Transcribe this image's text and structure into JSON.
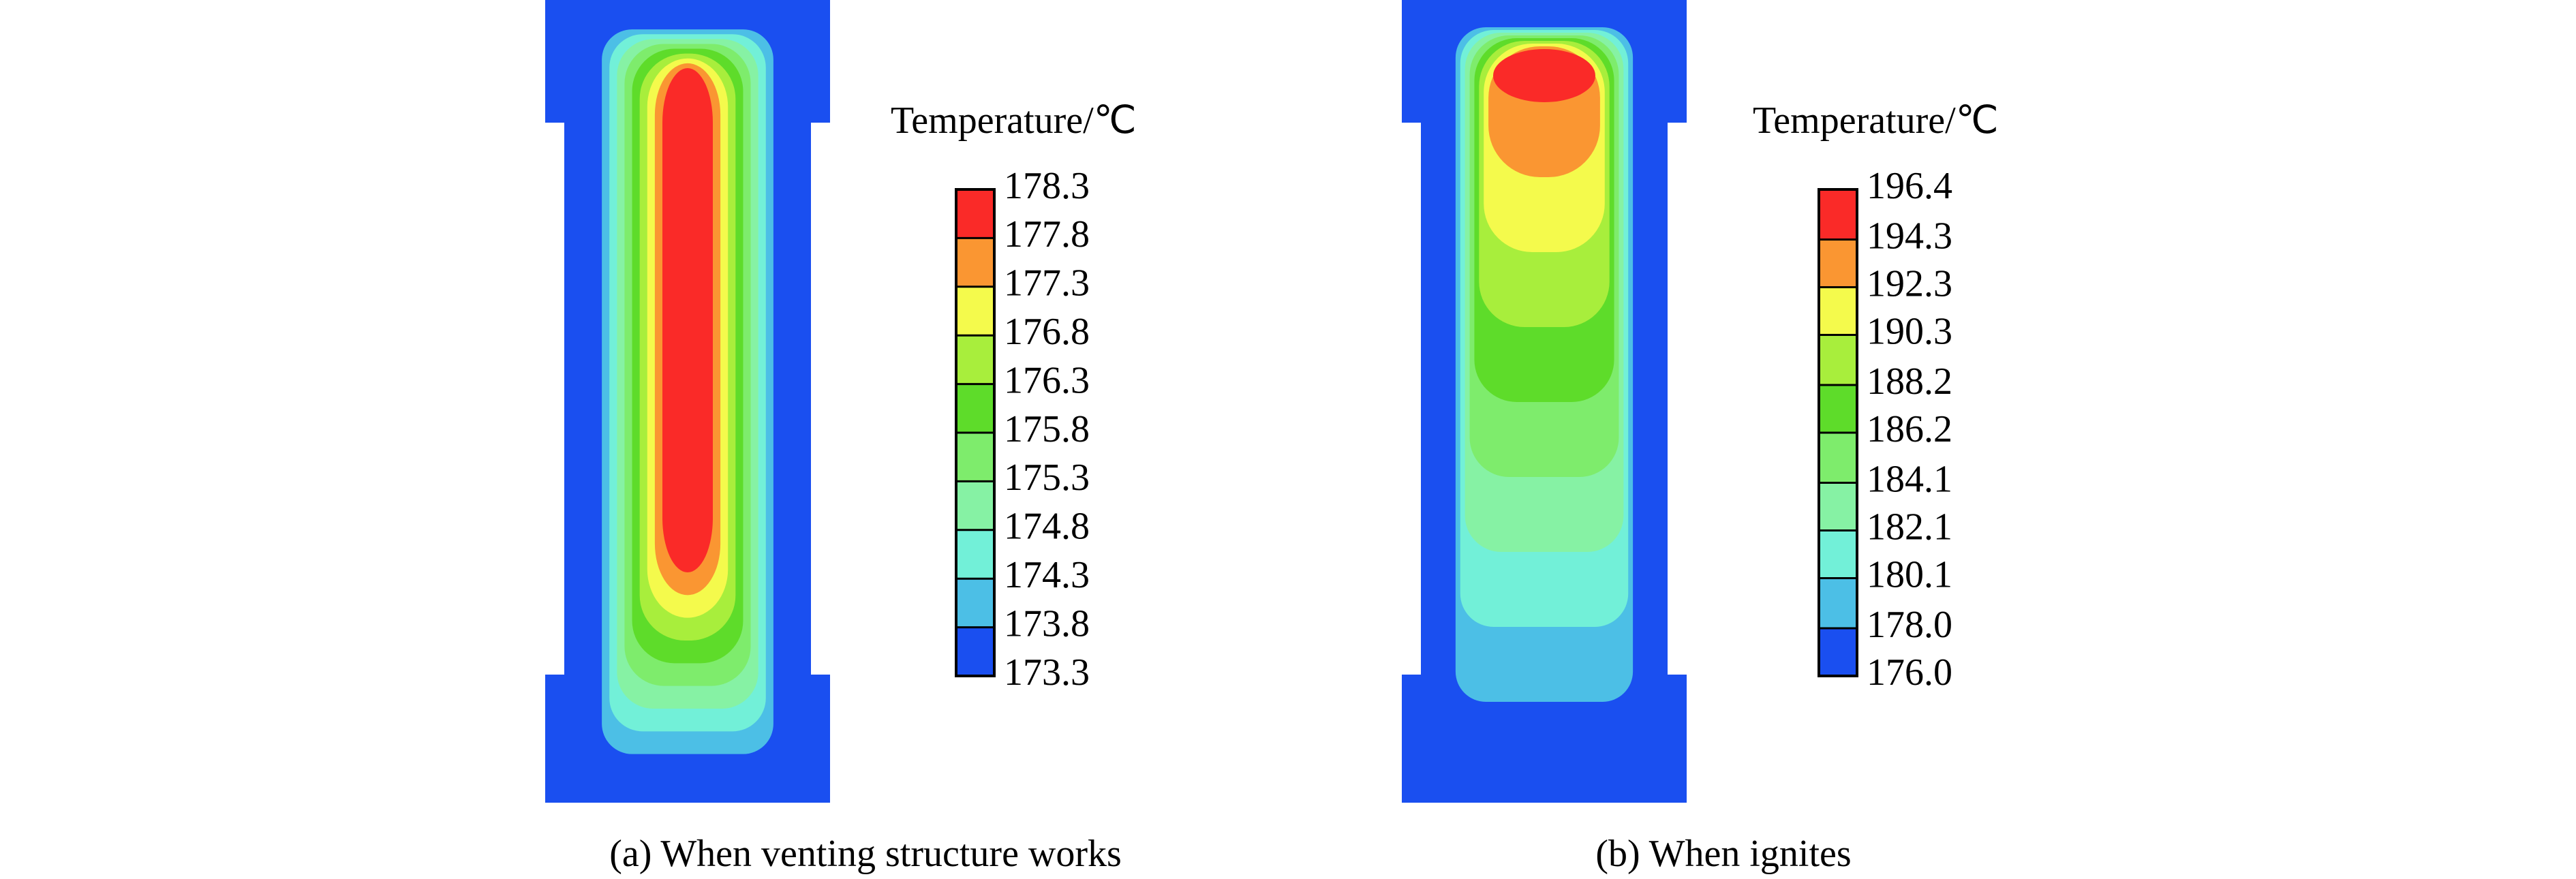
{
  "chart_data": [
    {
      "type": "contour",
      "title": "Temperature/℃",
      "caption": "(a) When venting structure works",
      "hotspot": "center",
      "levels": [
        173.3,
        173.8,
        174.3,
        174.8,
        175.3,
        175.8,
        176.3,
        176.8,
        177.3,
        177.8,
        178.3
      ],
      "colors": [
        "#1a4ff0",
        "#4cbfe6",
        "#72f0d8",
        "#86f2a4",
        "#7eec6c",
        "#5edc2a",
        "#a8ee3c",
        "#f4fa4c",
        "#fa9632",
        "#fa2a28"
      ]
    },
    {
      "type": "contour",
      "title": "Temperature/℃",
      "caption": "(b) When ignites",
      "hotspot": "top",
      "levels": [
        {
          "value": 176.0,
          "label": "176.0"
        },
        {
          "value": 178.0,
          "label": "178.0"
        },
        180.1,
        182.1,
        184.1,
        186.2,
        188.2,
        190.3,
        192.3,
        194.3,
        196.4
      ],
      "colors": [
        "#1a4ff0",
        "#4cbfe6",
        "#72f0d8",
        "#86f2a4",
        "#7eec6c",
        "#5edc2a",
        "#a8ee3c",
        "#f4fa4c",
        "#fa9632",
        "#fa2a28"
      ]
    }
  ]
}
